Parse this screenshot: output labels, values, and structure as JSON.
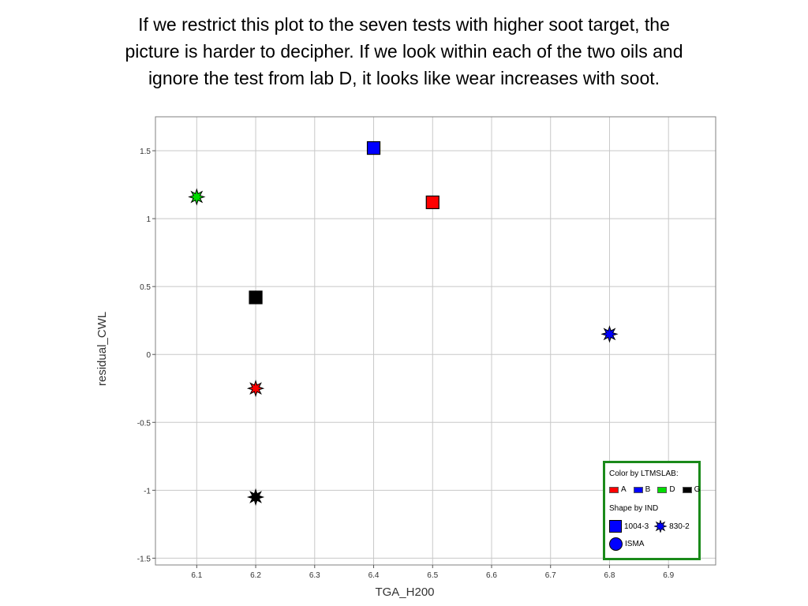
{
  "slide": {
    "title_lines": [
      "If we restrict this plot to the seven tests with higher soot target, the",
      "picture is harder to decipher. If we look within each of the two oils and",
      "ignore the test from lab D, it looks like wear increases with soot."
    ]
  },
  "chart_data": {
    "type": "scatter",
    "xlabel": "TGA_H200",
    "ylabel": "residual_CWL",
    "xlim": [
      6.03,
      6.98
    ],
    "ylim": [
      -1.55,
      1.75
    ],
    "x_ticks": [
      6.1,
      6.2,
      6.3,
      6.4,
      6.5,
      6.6,
      6.7,
      6.8,
      6.9
    ],
    "x_tick_labels": [
      "6.1",
      "6.2",
      "6.3",
      "6.4",
      "6.5",
      "6.6",
      "6.7",
      "6.8",
      "6.9"
    ],
    "y_ticks": [
      -1.5,
      -1,
      -0.5,
      0,
      0.5,
      1,
      1.5
    ],
    "y_tick_labels": [
      "-1.5",
      "-1",
      "-0.5",
      "0",
      "0.5",
      "1",
      "1.5"
    ],
    "grid": true,
    "legend_placement": "bottom-right",
    "points": [
      {
        "x": 6.1,
        "y": 1.16,
        "lab": "D",
        "shape": "830-2"
      },
      {
        "x": 6.4,
        "y": 1.52,
        "lab": "B",
        "shape": "1004-3"
      },
      {
        "x": 6.5,
        "y": 1.12,
        "lab": "A",
        "shape": "1004-3"
      },
      {
        "x": 6.2,
        "y": 0.42,
        "lab": "G",
        "shape": "1004-3"
      },
      {
        "x": 6.2,
        "y": -0.25,
        "lab": "A",
        "shape": "830-2"
      },
      {
        "x": 6.2,
        "y": -1.05,
        "lab": "G",
        "shape": "830-2"
      },
      {
        "x": 6.8,
        "y": 0.15,
        "lab": "B",
        "shape": "830-2"
      }
    ],
    "colors": {
      "A": "#ff0000",
      "B": "#0000ff",
      "D": "#00dd00",
      "G": "#000000"
    },
    "legend": {
      "color_title": "Color by LTMSLAB:",
      "color_items": [
        {
          "label": "A",
          "color": "#ff0000"
        },
        {
          "label": "B",
          "color": "#0000ff"
        },
        {
          "label": "D",
          "color": "#00dd00"
        },
        {
          "label": "G",
          "color": "#000000"
        }
      ],
      "shape_title": "Shape by IND",
      "shape_items": [
        {
          "label": "1004-3",
          "shape": "square-icon"
        },
        {
          "label": "830-2",
          "shape": "star-icon"
        },
        {
          "label": "ISMA",
          "shape": "circle-icon"
        }
      ]
    }
  }
}
